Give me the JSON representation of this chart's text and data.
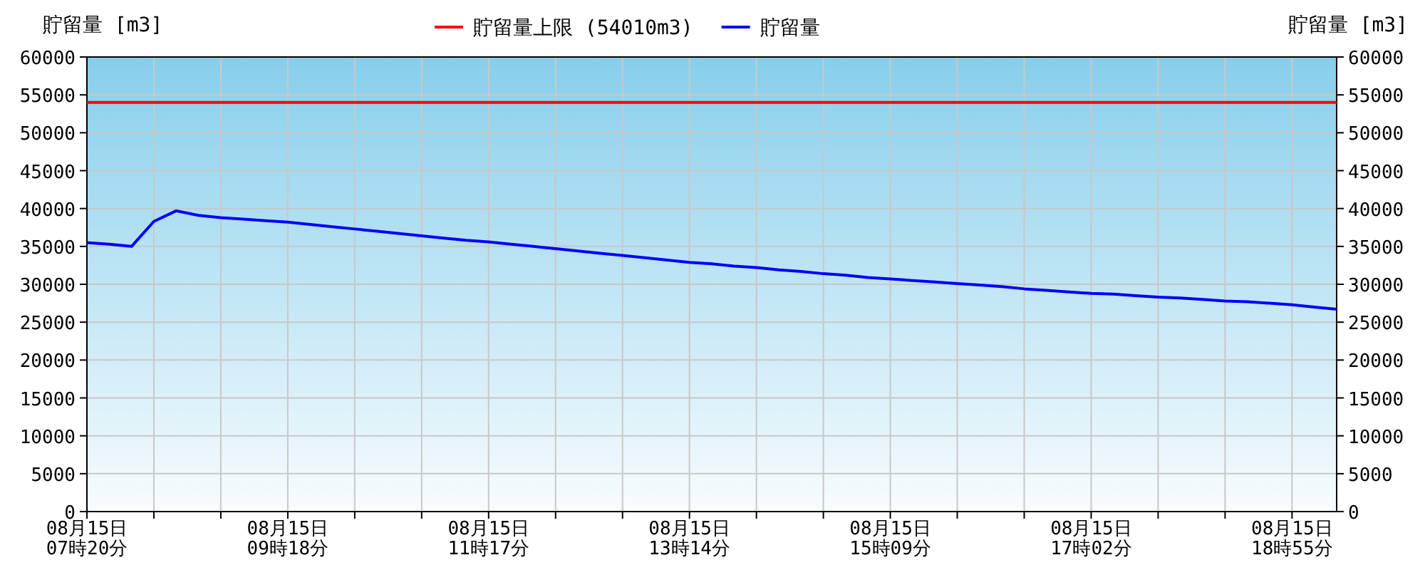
{
  "chart_data": {
    "type": "line",
    "ylabel": "貯留量 [m3]",
    "y2label": "貯留量 [m3]",
    "categories": [
      "08月15日 07時20分",
      null,
      null,
      null,
      null,
      null,
      null,
      null,
      null,
      "08月15日 09時18分",
      null,
      null,
      null,
      null,
      null,
      null,
      null,
      null,
      "08月15日 11時17分",
      null,
      null,
      null,
      null,
      null,
      null,
      null,
      null,
      "08月15日 13時14分",
      null,
      null,
      null,
      null,
      null,
      null,
      null,
      null,
      "08月15日 15時09分",
      null,
      null,
      null,
      null,
      null,
      null,
      null,
      null,
      "08月15日 17時02分",
      null,
      null,
      null,
      null,
      null,
      null,
      null,
      null,
      "08月15日 18時55分",
      null,
      null
    ],
    "series": [
      {
        "name": "貯留量",
        "color": "#0000ff",
        "values": [
          35500,
          35300,
          35000,
          38300,
          39700,
          39100,
          38800,
          38600,
          38400,
          38200,
          37900,
          37600,
          37300,
          37000,
          36700,
          36400,
          36100,
          35800,
          35600,
          35300,
          35000,
          34700,
          34400,
          34100,
          33800,
          33500,
          33200,
          32900,
          32700,
          32400,
          32200,
          31900,
          31700,
          31400,
          31200,
          30900,
          30700,
          30500,
          30300,
          30100,
          29900,
          29700,
          29400,
          29200,
          29000,
          28800,
          28700,
          28500,
          28300,
          28200,
          28000,
          27800,
          27700,
          27500,
          27300,
          27000,
          26700
        ]
      }
    ],
    "ref_lines": [
      {
        "axis": "y",
        "value": 54010,
        "label": "貯留量上限 (54010m3)",
        "color": "#ff0000"
      }
    ],
    "ylim": [
      0,
      60000
    ],
    "yticks": [
      0,
      5000,
      10000,
      15000,
      20000,
      25000,
      30000,
      35000,
      40000,
      45000,
      50000,
      55000,
      60000
    ],
    "y2lim": [
      0,
      60000
    ],
    "y2ticks": [
      0,
      5000,
      10000,
      15000,
      20000,
      25000,
      30000,
      35000,
      40000,
      45000,
      50000,
      55000,
      60000
    ],
    "grid": true,
    "legend": "top"
  }
}
